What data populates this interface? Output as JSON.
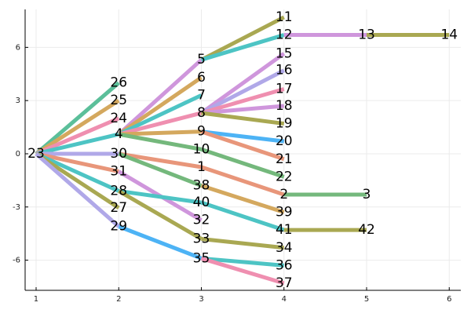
{
  "chart_data": {
    "type": "tree",
    "xlim": [
      0.867,
      6.14
    ],
    "ylim": [
      -7.7,
      8.14
    ],
    "xticks": [
      1,
      2,
      3,
      4,
      5,
      6
    ],
    "yticks": [
      -6,
      -3,
      0,
      3,
      6
    ],
    "grid": true,
    "line_width": 5,
    "nodes": [
      {
        "label": "23",
        "x": 1,
        "y": 0
      },
      {
        "label": "26",
        "x": 2,
        "y": 4.0
      },
      {
        "label": "25",
        "x": 2,
        "y": 3.0
      },
      {
        "label": "24",
        "x": 2,
        "y": 2.0
      },
      {
        "label": "4",
        "x": 2,
        "y": 1.1
      },
      {
        "label": "30",
        "x": 2,
        "y": 0
      },
      {
        "label": "31",
        "x": 2,
        "y": -1.0
      },
      {
        "label": "28",
        "x": 2,
        "y": -2.1
      },
      {
        "label": "27",
        "x": 2,
        "y": -3.05
      },
      {
        "label": "29",
        "x": 2,
        "y": -4.1
      },
      {
        "label": "5",
        "x": 3,
        "y": 5.3
      },
      {
        "label": "6",
        "x": 3,
        "y": 4.3
      },
      {
        "label": "7",
        "x": 3,
        "y": 3.3
      },
      {
        "label": "8",
        "x": 3,
        "y": 2.3
      },
      {
        "label": "9",
        "x": 3,
        "y": 1.25
      },
      {
        "label": "10",
        "x": 3,
        "y": 0.25
      },
      {
        "label": "1",
        "x": 3,
        "y": -0.75
      },
      {
        "label": "38",
        "x": 3,
        "y": -1.8
      },
      {
        "label": "40",
        "x": 3,
        "y": -2.75
      },
      {
        "label": "32",
        "x": 3,
        "y": -3.75
      },
      {
        "label": "33",
        "x": 3,
        "y": -4.8
      },
      {
        "label": "35",
        "x": 3,
        "y": -5.9
      },
      {
        "label": "11",
        "x": 4,
        "y": 7.7
      },
      {
        "label": "12",
        "x": 4,
        "y": 6.7
      },
      {
        "label": "15",
        "x": 4,
        "y": 5.65
      },
      {
        "label": "16",
        "x": 4,
        "y": 4.7
      },
      {
        "label": "17",
        "x": 4,
        "y": 3.65
      },
      {
        "label": "18",
        "x": 4,
        "y": 2.7
      },
      {
        "label": "19",
        "x": 4,
        "y": 1.7
      },
      {
        "label": "20",
        "x": 4,
        "y": 0.7
      },
      {
        "label": "21",
        "x": 4,
        "y": -0.3
      },
      {
        "label": "22",
        "x": 4,
        "y": -1.3
      },
      {
        "label": "2",
        "x": 4,
        "y": -2.3
      },
      {
        "label": "39",
        "x": 4,
        "y": -3.3
      },
      {
        "label": "41",
        "x": 4,
        "y": -4.3
      },
      {
        "label": "34",
        "x": 4,
        "y": -5.3
      },
      {
        "label": "36",
        "x": 4,
        "y": -6.3
      },
      {
        "label": "37",
        "x": 4,
        "y": -7.3
      },
      {
        "label": "13",
        "x": 5,
        "y": 6.7
      },
      {
        "label": "3",
        "x": 5,
        "y": -2.3
      },
      {
        "label": "42",
        "x": 5,
        "y": -4.3
      },
      {
        "label": "14",
        "x": 6,
        "y": 6.7
      }
    ],
    "edges": [
      {
        "from": "23",
        "to": "26",
        "color": "#5bbf9a"
      },
      {
        "from": "23",
        "to": "25",
        "color": "#d4a85e"
      },
      {
        "from": "23",
        "to": "24",
        "color": "#ef8fb0"
      },
      {
        "from": "23",
        "to": "4",
        "color": "#4dc4c4"
      },
      {
        "from": "23",
        "to": "30",
        "color": "#b0a8e8"
      },
      {
        "from": "23",
        "to": "31",
        "color": "#e8967a"
      },
      {
        "from": "23",
        "to": "28",
        "color": "#4dc4c4"
      },
      {
        "from": "23",
        "to": "27",
        "color": "#a9a852"
      },
      {
        "from": "23",
        "to": "29",
        "color": "#b0a8e8"
      },
      {
        "from": "4",
        "to": "5",
        "color": "#cf96dc"
      },
      {
        "from": "4",
        "to": "6",
        "color": "#d4a85e"
      },
      {
        "from": "4",
        "to": "7",
        "color": "#4dc4c4"
      },
      {
        "from": "4",
        "to": "8",
        "color": "#ef8fb0"
      },
      {
        "from": "4",
        "to": "9",
        "color": "#d4a85e"
      },
      {
        "from": "4",
        "to": "10",
        "color": "#74b87c"
      },
      {
        "from": "30",
        "to": "1",
        "color": "#e8967a"
      },
      {
        "from": "30",
        "to": "38",
        "color": "#74b87c"
      },
      {
        "from": "31",
        "to": "32",
        "color": "#cf96dc"
      },
      {
        "from": "28",
        "to": "40",
        "color": "#4dc4c4"
      },
      {
        "from": "28",
        "to": "33",
        "color": "#a9a852"
      },
      {
        "from": "29",
        "to": "35",
        "color": "#4db3f5"
      },
      {
        "from": "5",
        "to": "11",
        "color": "#a9a852"
      },
      {
        "from": "5",
        "to": "12",
        "color": "#4dc4c4"
      },
      {
        "from": "8",
        "to": "15",
        "color": "#cf96dc"
      },
      {
        "from": "8",
        "to": "16",
        "color": "#b0a8e8"
      },
      {
        "from": "8",
        "to": "17",
        "color": "#ef8fb0"
      },
      {
        "from": "8",
        "to": "18",
        "color": "#cf96dc"
      },
      {
        "from": "8",
        "to": "19",
        "color": "#a9a852"
      },
      {
        "from": "9",
        "to": "20",
        "color": "#4db3f5"
      },
      {
        "from": "9",
        "to": "21",
        "color": "#e8967a"
      },
      {
        "from": "10",
        "to": "22",
        "color": "#74b87c"
      },
      {
        "from": "1",
        "to": "2",
        "color": "#e8967a"
      },
      {
        "from": "38",
        "to": "39",
        "color": "#d4a85e"
      },
      {
        "from": "40",
        "to": "41",
        "color": "#4dc4c4"
      },
      {
        "from": "33",
        "to": "34",
        "color": "#a9a852"
      },
      {
        "from": "35",
        "to": "36",
        "color": "#4dc4c4"
      },
      {
        "from": "35",
        "to": "37",
        "color": "#ef8fb0"
      },
      {
        "from": "12",
        "to": "13",
        "color": "#cf96dc"
      },
      {
        "from": "13",
        "to": "14",
        "color": "#a9a852"
      },
      {
        "from": "2",
        "to": "3",
        "color": "#74b87c"
      },
      {
        "from": "41",
        "to": "42",
        "color": "#a9a852"
      }
    ]
  }
}
